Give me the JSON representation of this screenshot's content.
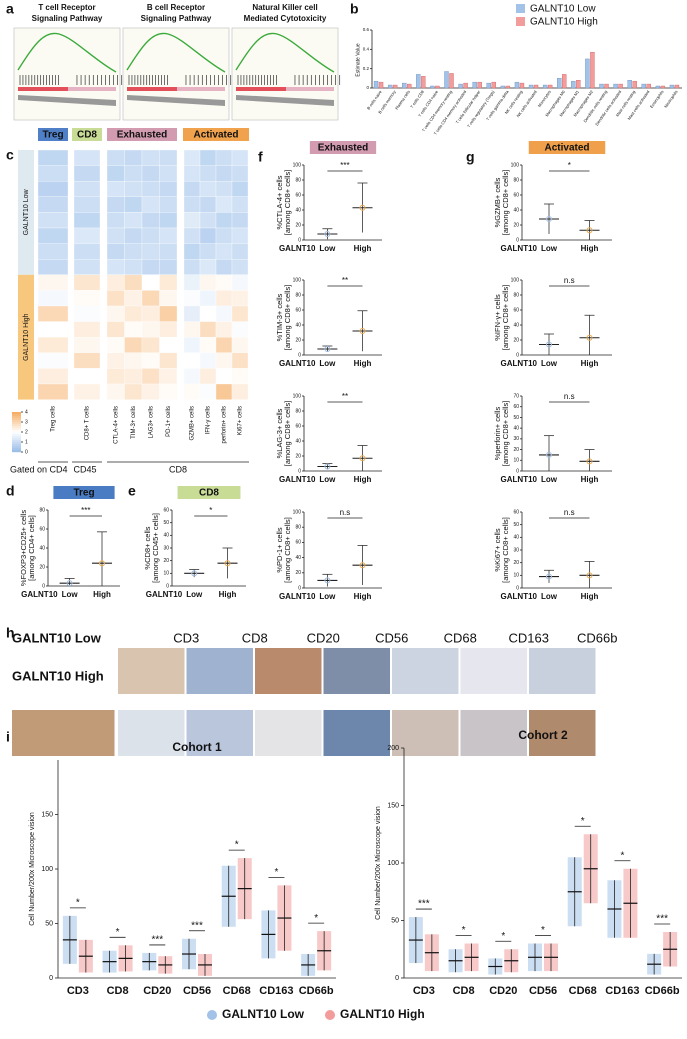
{
  "panel_labels": [
    "a",
    "b",
    "c",
    "d",
    "e",
    "f",
    "g",
    "h",
    "i"
  ],
  "gsea": {
    "titles": [
      [
        "T cell Receptor",
        "Signaling Pathway"
      ],
      [
        "B cell Receptor",
        "Signaling Pathway"
      ],
      [
        "Natural Killer cell",
        "Mediated Cytotoxicity"
      ]
    ]
  },
  "legend": {
    "series": [
      {
        "name": "GALNT10 Low",
        "color": "#a3c2e8"
      },
      {
        "name": "GALNT10 High",
        "color": "#f39c9c"
      }
    ]
  },
  "ihc": {
    "row_labels": [
      "GALNT10 Low",
      "GALNT10 High"
    ],
    "stains": [
      "CD3",
      "CD8",
      "CD20",
      "CD56",
      "CD68",
      "CD163",
      "CD66b"
    ]
  },
  "chart_data": [
    {
      "type": "box",
      "ylabel": "Estimate Value",
      "categories": [
        "B cells naive",
        "B cells memory",
        "Plasma cells",
        "T cells CD8",
        "T cells CD4 naive",
        "T cells CD4 memory resting",
        "T cells CD4 memory activated",
        "T cells follicular helper",
        "T cells regulatory (Tregs)",
        "T cells gamma delta",
        "NK cells resting",
        "NK cells activated",
        "Monocytes",
        "Macrophages M0",
        "Macrophages M1",
        "Macrophages M2",
        "Dendritic cells resting",
        "Dendritic cells activated",
        "Mast cells resting",
        "Mast cells activated",
        "Eosinophils",
        "Neutrophils"
      ],
      "series": [
        {
          "values": [
            0.05,
            0.01,
            0.03,
            0.12,
            0,
            0.15,
            0.02,
            0.04,
            0.03,
            0,
            0.04,
            0.01,
            0.01,
            0.08,
            0.05,
            0.28,
            0.02,
            0.02,
            0.06,
            0.02,
            0,
            0.01
          ]
        },
        {
          "values": [
            0.04,
            0.01,
            0.02,
            0.1,
            0,
            0.13,
            0.03,
            0.04,
            0.04,
            0,
            0.03,
            0.01,
            0.01,
            0.12,
            0.06,
            0.35,
            0.02,
            0.02,
            0.05,
            0.02,
            0,
            0.01
          ]
        }
      ],
      "ylim": [
        0,
        0.6
      ],
      "yticks": [
        0,
        0.2,
        0.4,
        0.6
      ]
    },
    {
      "type": "heatmap",
      "groups": [
        {
          "name": "Treg",
          "color": "#4f7fc6"
        },
        {
          "name": "CD8",
          "color": "#c9dc96"
        },
        {
          "name": "Exhausted",
          "color": "#d39bb0"
        },
        {
          "name": "Activated",
          "color": "#f0a24c"
        }
      ],
      "columns": [
        "Treg cells",
        "CD8+ T cells",
        "CTLA-4+ cells",
        "TIM-3+ cells",
        "LAG3+ cells",
        "PD-1+ cells",
        "GZMB+ cells",
        "IFN-γ cells",
        "perforin+ cells",
        "Ki67+ cells"
      ],
      "row_groups": [
        "GALNT10 Low",
        "GALNT10 High"
      ],
      "gates": [
        "Gated on CD4",
        "CD45",
        "CD8"
      ],
      "scale_ticks": [
        0,
        1,
        2,
        3,
        4
      ],
      "values": [
        [
          0.8,
          1.2,
          1.0,
          0.9,
          1.1,
          1.0,
          1.3,
          0.8,
          1.0,
          1.2
        ],
        [
          1.0,
          0.9,
          0.8,
          1.0,
          0.9,
          1.1,
          1.2,
          1.0,
          0.9,
          1.0
        ],
        [
          0.7,
          1.1,
          1.2,
          1.1,
          1.0,
          0.9,
          0.9,
          1.2,
          1.1,
          0.8
        ],
        [
          0.9,
          1.0,
          0.9,
          0.8,
          1.2,
          1.0,
          1.0,
          0.9,
          1.3,
          1.1
        ],
        [
          1.1,
          0.8,
          1.0,
          1.2,
          0.9,
          0.8,
          1.4,
          1.1,
          0.8,
          0.9
        ],
        [
          0.8,
          1.3,
          1.1,
          0.9,
          1.0,
          1.2,
          1.1,
          0.7,
          1.0,
          1.2
        ],
        [
          1.0,
          1.0,
          0.9,
          1.0,
          1.1,
          1.0,
          0.8,
          1.0,
          1.2,
          1.0
        ],
        [
          0.9,
          1.1,
          1.2,
          1.1,
          0.9,
          0.9,
          1.0,
          1.3,
          0.9,
          1.1
        ],
        [
          2.2,
          2.6,
          2.4,
          2.8,
          2.0,
          2.5,
          1.6,
          2.2,
          2.1,
          1.8
        ],
        [
          1.8,
          2.1,
          2.7,
          2.3,
          2.9,
          2.2,
          1.9,
          1.7,
          2.4,
          2.3
        ],
        [
          2.9,
          1.9,
          2.2,
          2.5,
          2.4,
          3.1,
          1.5,
          2.0,
          1.8,
          2.6
        ],
        [
          2.0,
          2.4,
          2.6,
          2.1,
          2.2,
          2.4,
          2.2,
          2.8,
          2.3,
          1.9
        ],
        [
          2.5,
          2.2,
          2.1,
          2.9,
          2.6,
          2.0,
          1.7,
          2.1,
          3.0,
          2.2
        ],
        [
          1.9,
          2.8,
          2.3,
          2.2,
          2.1,
          2.6,
          2.0,
          1.8,
          2.2,
          2.7
        ],
        [
          2.4,
          2.0,
          2.5,
          2.4,
          2.7,
          2.3,
          1.8,
          2.4,
          2.0,
          2.1
        ],
        [
          3.0,
          2.3,
          2.2,
          2.6,
          2.3,
          2.1,
          2.1,
          1.9,
          3.3,
          2.4
        ]
      ]
    },
    {
      "type": "dot",
      "title": "Treg",
      "title_color": "#4a7cc4",
      "ylabel": [
        "%FOXP3+CD25+ cells",
        "[among CD4+ cells]"
      ],
      "group_label": "GALNT10",
      "categories": [
        "Low",
        "High"
      ],
      "means": [
        3,
        24
      ],
      "sd": [
        5,
        33
      ],
      "significance": "***",
      "ylim": [
        0,
        80
      ],
      "yticks": [
        0,
        20,
        40,
        60,
        80
      ]
    },
    {
      "type": "dot",
      "title": "CD8",
      "title_color": "#c9dc96",
      "ylabel": [
        "%CD8+ cells",
        "[among CD45+ cells]"
      ],
      "group_label": "GALNT10",
      "categories": [
        "Low",
        "High"
      ],
      "means": [
        10,
        18
      ],
      "sd": [
        3,
        12
      ],
      "significance": "*",
      "ylim": [
        0,
        60
      ],
      "yticks": [
        0,
        10,
        20,
        30,
        40,
        50,
        60
      ]
    },
    {
      "type": "dot",
      "title": "Exhausted",
      "title_color": "#d39bb0",
      "ylabel": [
        "%CTLA-4+ cells",
        "[among CD8+ cells]"
      ],
      "group_label": "GALNT10",
      "categories": [
        "Low",
        "High"
      ],
      "means": [
        8,
        43
      ],
      "sd": [
        7,
        33
      ],
      "significance": "***",
      "ylim": [
        0,
        100
      ],
      "yticks": [
        0,
        20,
        40,
        60,
        80,
        100
      ]
    },
    {
      "type": "dot",
      "ylabel": [
        "%TIM-3+ cells",
        "[among CD8+ cells]"
      ],
      "group_label": "GALNT10",
      "categories": [
        "Low",
        "High"
      ],
      "means": [
        8,
        32
      ],
      "sd": [
        4,
        27
      ],
      "significance": "**",
      "ylim": [
        0,
        100
      ],
      "yticks": [
        0,
        20,
        40,
        60,
        80,
        100
      ]
    },
    {
      "type": "dot",
      "ylabel": [
        "%LAG-3+ cells",
        "[among CD8+ cells]"
      ],
      "group_label": "GALNT10",
      "categories": [
        "Low",
        "High"
      ],
      "means": [
        6,
        17
      ],
      "sd": [
        4,
        17
      ],
      "significance": "**",
      "ylim": [
        0,
        100
      ],
      "yticks": [
        0,
        20,
        40,
        60,
        80,
        100
      ]
    },
    {
      "type": "dot",
      "ylabel": [
        "%PD-1+ cells",
        "[among CD8+ cells]"
      ],
      "group_label": "GALNT10",
      "categories": [
        "Low",
        "High"
      ],
      "means": [
        10,
        30
      ],
      "sd": [
        8,
        26
      ],
      "significance": "n.s",
      "ylim": [
        0,
        100
      ],
      "yticks": [
        0,
        20,
        40,
        60,
        80,
        100
      ]
    },
    {
      "type": "dot",
      "title": "Activated",
      "title_color": "#f0a04b",
      "ylabel": [
        "%GZMB+ cells",
        "[among CD8+ cells]"
      ],
      "group_label": "GALNT10",
      "categories": [
        "Low",
        "High"
      ],
      "means": [
        28,
        13
      ],
      "sd": [
        20,
        13
      ],
      "significance": "*",
      "ylim": [
        0,
        100
      ],
      "yticks": [
        0,
        20,
        40,
        60,
        80,
        100
      ]
    },
    {
      "type": "dot",
      "ylabel": [
        "%IFN-γ+ cells",
        "[among CD8+ cells]"
      ],
      "group_label": "GALNT10",
      "categories": [
        "Low",
        "High"
      ],
      "means": [
        14,
        23
      ],
      "sd": [
        14,
        30
      ],
      "significance": "n.s",
      "ylim": [
        0,
        100
      ],
      "yticks": [
        0,
        20,
        40,
        60,
        80,
        100
      ]
    },
    {
      "type": "dot",
      "ylabel": [
        "%perforin+ cells",
        "[among CD8+ cells]"
      ],
      "group_label": "GALNT10",
      "categories": [
        "Low",
        "High"
      ],
      "means": [
        15,
        9
      ],
      "sd": [
        18,
        11
      ],
      "significance": "n.s",
      "ylim": [
        0,
        70
      ],
      "yticks": [
        0,
        10,
        20,
        30,
        40,
        50,
        60,
        70
      ]
    },
    {
      "type": "dot",
      "ylabel": [
        "%Ki67+ cells",
        "[among CD8+ cells]"
      ],
      "group_label": "GALNT10",
      "categories": [
        "Low",
        "High"
      ],
      "means": [
        9,
        10
      ],
      "sd": [
        5,
        11
      ],
      "significance": "n.s",
      "ylim": [
        0,
        60
      ],
      "yticks": [
        0,
        10,
        20,
        30,
        40,
        50,
        60
      ]
    },
    {
      "type": "grouped-dot",
      "title": "Cohort 1",
      "ylabel": "Cell Number/200x Microscope vision",
      "categories": [
        "CD3",
        "CD8",
        "CD20",
        "CD56",
        "CD68",
        "CD163",
        "CD66b"
      ],
      "series": [
        {
          "means": [
            35,
            15,
            15,
            22,
            75,
            40,
            12
          ],
          "sd": [
            22,
            10,
            8,
            14,
            28,
            22,
            10
          ]
        },
        {
          "means": [
            20,
            18,
            12,
            12,
            82,
            55,
            25
          ],
          "sd": [
            15,
            12,
            8,
            10,
            28,
            30,
            18
          ]
        }
      ],
      "significance": [
        "*",
        "*",
        "***",
        "***",
        "*",
        "*",
        "*"
      ],
      "ylim": [
        0,
        200
      ],
      "yticks": [
        0,
        50,
        100,
        150
      ]
    },
    {
      "type": "grouped-dot",
      "title": "Cohort 2",
      "ylabel": "Cell Number/200x Microscope vision",
      "categories": [
        "CD3",
        "CD8",
        "CD20",
        "CD56",
        "CD68",
        "CD163",
        "CD66b"
      ],
      "series": [
        {
          "means": [
            33,
            15,
            10,
            18,
            75,
            60,
            12
          ],
          "sd": [
            20,
            10,
            7,
            12,
            30,
            25,
            9
          ]
        },
        {
          "means": [
            22,
            18,
            15,
            18,
            95,
            65,
            25
          ],
          "sd": [
            16,
            12,
            10,
            12,
            30,
            30,
            15
          ]
        }
      ],
      "significance": [
        "***",
        "*",
        "*",
        "*",
        "*",
        "*",
        "***"
      ],
      "ylim": [
        0,
        200
      ],
      "yticks": [
        0,
        50,
        100,
        150,
        200
      ]
    }
  ]
}
